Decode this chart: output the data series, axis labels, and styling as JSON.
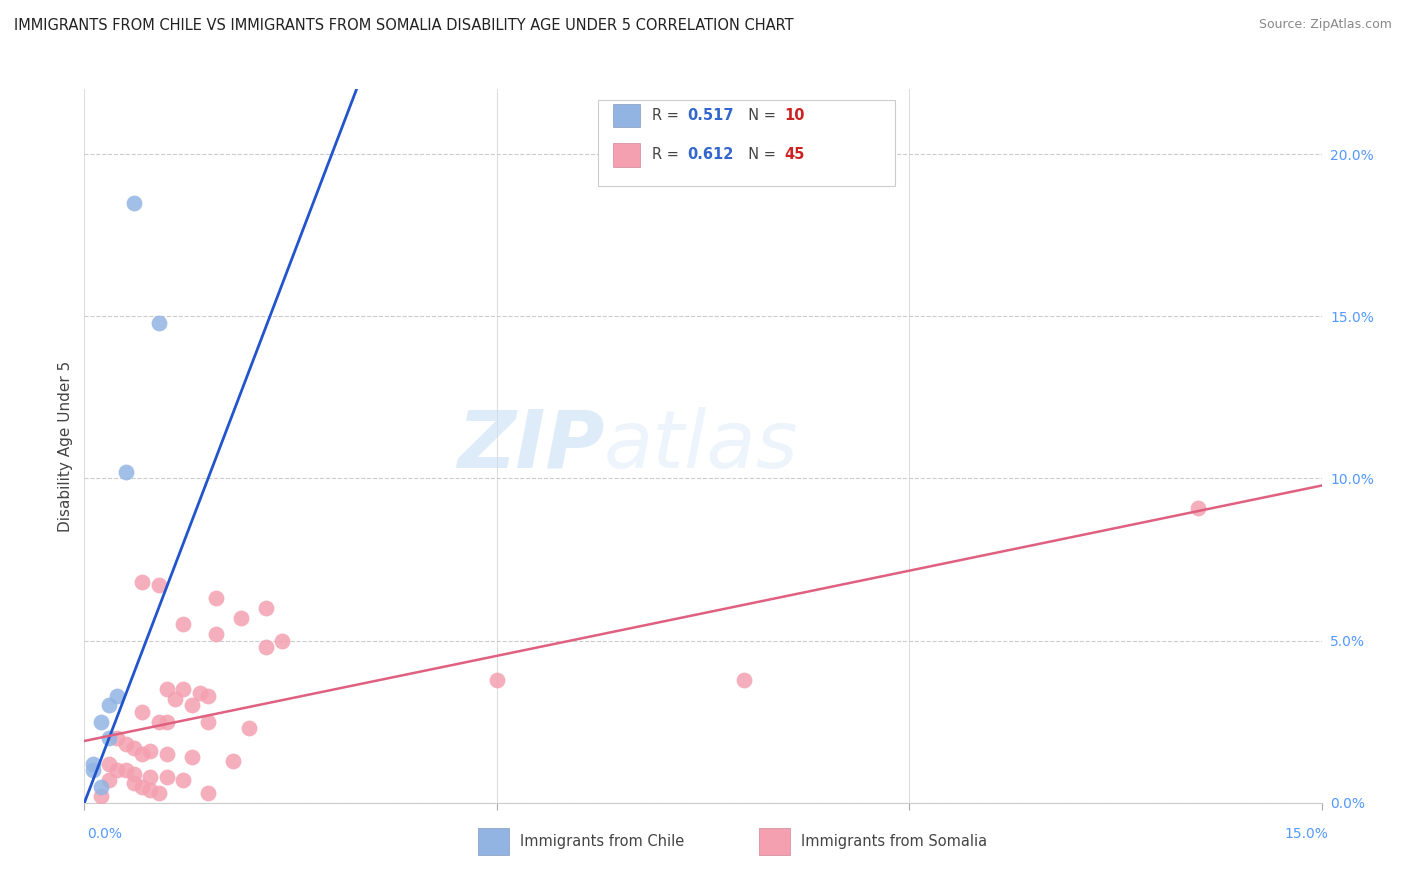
{
  "title": "IMMIGRANTS FROM CHILE VS IMMIGRANTS FROM SOMALIA DISABILITY AGE UNDER 5 CORRELATION CHART",
  "source": "Source: ZipAtlas.com",
  "ylabel": "Disability Age Under 5",
  "legend_label_chile": "Immigrants from Chile",
  "legend_label_somalia": "Immigrants from Somalia",
  "xlim": [
    0.0,
    0.15
  ],
  "ylim": [
    0.0,
    0.22
  ],
  "x_ticks": [
    0.0,
    0.05,
    0.1,
    0.15
  ],
  "y_ticks_right": [
    0.0,
    0.05,
    0.1,
    0.15,
    0.2
  ],
  "chile_color": "#92b4e3",
  "somalia_color": "#f4a0b0",
  "chile_line_color": "#2255cc",
  "somalia_line_color": "#e06080",
  "chile_dashed_color": "#aaccee",
  "legend_R_chile": "0.517",
  "legend_N_chile": "10",
  "legend_R_somalia": "0.612",
  "legend_N_somalia": "45",
  "watermark_zip": "ZIP",
  "watermark_atlas": "atlas",
  "background_color": "#ffffff",
  "tick_color": "#5599ff",
  "bottom_label_0": "0.0%",
  "bottom_label_15": "15.0%",
  "chile_points": [
    [
      0.006,
      0.185
    ],
    [
      0.009,
      0.148
    ],
    [
      0.005,
      0.102
    ],
    [
      0.004,
      0.033
    ],
    [
      0.003,
      0.03
    ],
    [
      0.002,
      0.025
    ],
    [
      0.003,
      0.02
    ],
    [
      0.001,
      0.012
    ],
    [
      0.001,
      0.01
    ],
    [
      0.002,
      0.005
    ]
  ],
  "somalia_points": [
    [
      0.135,
      0.091
    ],
    [
      0.007,
      0.068
    ],
    [
      0.009,
      0.067
    ],
    [
      0.016,
      0.063
    ],
    [
      0.022,
      0.06
    ],
    [
      0.019,
      0.057
    ],
    [
      0.012,
      0.055
    ],
    [
      0.016,
      0.052
    ],
    [
      0.024,
      0.05
    ],
    [
      0.022,
      0.048
    ],
    [
      0.05,
      0.038
    ],
    [
      0.08,
      0.038
    ],
    [
      0.01,
      0.035
    ],
    [
      0.012,
      0.035
    ],
    [
      0.014,
      0.034
    ],
    [
      0.015,
      0.033
    ],
    [
      0.011,
      0.032
    ],
    [
      0.013,
      0.03
    ],
    [
      0.007,
      0.028
    ],
    [
      0.009,
      0.025
    ],
    [
      0.01,
      0.025
    ],
    [
      0.015,
      0.025
    ],
    [
      0.02,
      0.023
    ],
    [
      0.004,
      0.02
    ],
    [
      0.005,
      0.018
    ],
    [
      0.006,
      0.017
    ],
    [
      0.008,
      0.016
    ],
    [
      0.007,
      0.015
    ],
    [
      0.01,
      0.015
    ],
    [
      0.013,
      0.014
    ],
    [
      0.018,
      0.013
    ],
    [
      0.003,
      0.012
    ],
    [
      0.004,
      0.01
    ],
    [
      0.005,
      0.01
    ],
    [
      0.006,
      0.009
    ],
    [
      0.008,
      0.008
    ],
    [
      0.01,
      0.008
    ],
    [
      0.003,
      0.007
    ],
    [
      0.012,
      0.007
    ],
    [
      0.006,
      0.006
    ],
    [
      0.007,
      0.005
    ],
    [
      0.008,
      0.004
    ],
    [
      0.009,
      0.003
    ],
    [
      0.015,
      0.003
    ],
    [
      0.002,
      0.002
    ]
  ]
}
